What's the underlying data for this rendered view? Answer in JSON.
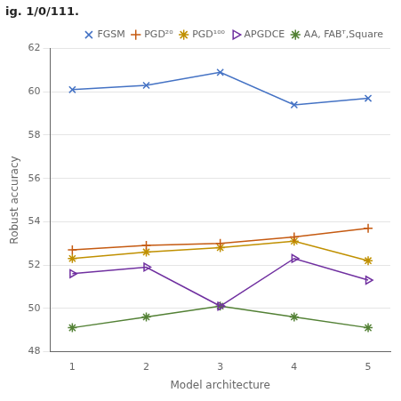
{
  "chart_data": {
    "type": "line",
    "title": "ig. 1/0/111.",
    "xlabel": "Model architecture",
    "ylabel": "Robust accuracy",
    "x": [
      1,
      2,
      3,
      4,
      5
    ],
    "series": [
      {
        "name": "FGSM",
        "color": "#4472C4",
        "marker": "x",
        "values": [
          60.1,
          60.3,
          60.9,
          59.4,
          59.7
        ]
      },
      {
        "name": "PGD²⁰",
        "color": "#C55A11",
        "marker": "plus",
        "values": [
          52.7,
          52.9,
          53.0,
          53.3,
          53.7
        ]
      },
      {
        "name": "PGD¹⁰⁰",
        "color": "#C09000",
        "marker": "star",
        "values": [
          52.3,
          52.6,
          52.8,
          53.1,
          52.2
        ]
      },
      {
        "name": "APGDCE",
        "color": "#7030A0",
        "marker": "triangle_right",
        "values": [
          51.6,
          51.9,
          50.1,
          52.3,
          51.3
        ]
      },
      {
        "name": "AA, FABᵀ,Square",
        "color": "#538135",
        "marker": "star",
        "values": [
          49.1,
          49.6,
          50.1,
          49.6,
          49.1
        ]
      }
    ],
    "xlim": [
      0.7,
      5.3
    ],
    "xticks": [
      1,
      2,
      3,
      4,
      5
    ],
    "ylim": [
      48,
      62
    ],
    "yticks": [
      48,
      50,
      52,
      54,
      56,
      58,
      60,
      62
    ],
    "grid": "y",
    "legend": "upper right"
  }
}
